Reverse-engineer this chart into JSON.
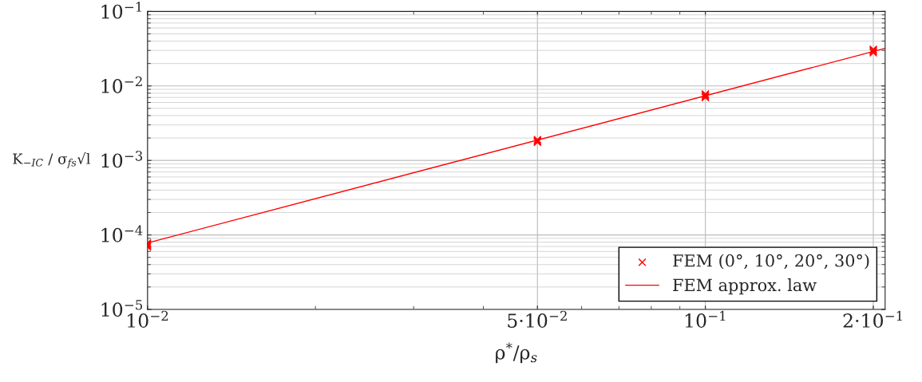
{
  "chart_data": {
    "type": "scatter",
    "xlabel": "ρ$^{*}$/ρ$_{s}$",
    "ylabel": "K$_{−IC}$ / σ$_{fs}$√l",
    "log": "xy",
    "grid": true,
    "legend": "bottom right",
    "xlim": [
      0.01,
      0.21
    ],
    "ylim": [
      1e-05,
      0.1
    ],
    "xticks": [
      {
        "value": 0.01,
        "label": "10$^{−2}$"
      },
      {
        "value": 0.05,
        "label": "5·10$^{−2}$"
      },
      {
        "value": 0.1,
        "label": "10$^{−1}$"
      },
      {
        "value": 0.2,
        "label": "2·10$^{−1}$"
      }
    ],
    "yticks": [
      {
        "value": 1e-05,
        "label": "10$^{−5}$"
      },
      {
        "value": 0.0001,
        "label": "10$^{−4}$"
      },
      {
        "value": 0.001,
        "label": "10$^{−3}$"
      },
      {
        "value": 0.01,
        "label": "10$^{−2}$"
      },
      {
        "value": 0.1,
        "label": "10$^{−1}$"
      }
    ],
    "series": [
      {
        "name": "FEM (0°, 10°, 20°, 30°)",
        "marker": "cross",
        "color": "#ff0000",
        "x": [
          0.01,
          0.01,
          0.01,
          0.01,
          0.05,
          0.05,
          0.05,
          0.05,
          0.1,
          0.1,
          0.1,
          0.1,
          0.2,
          0.2,
          0.2,
          0.2
        ],
        "values": [
          7.8e-05,
          7.5e-05,
          7.2e-05,
          6.9e-05,
          0.0019,
          0.00185,
          0.0018,
          0.00175,
          0.0078,
          0.0075,
          0.0072,
          0.007,
          0.031,
          0.03,
          0.029,
          0.028
        ]
      },
      {
        "name": "FEM approx. law",
        "type": "line",
        "color": "#ff0000",
        "x": [
          0.01,
          0.21
        ],
        "values": [
          7.8e-05,
          0.032
        ]
      }
    ]
  }
}
